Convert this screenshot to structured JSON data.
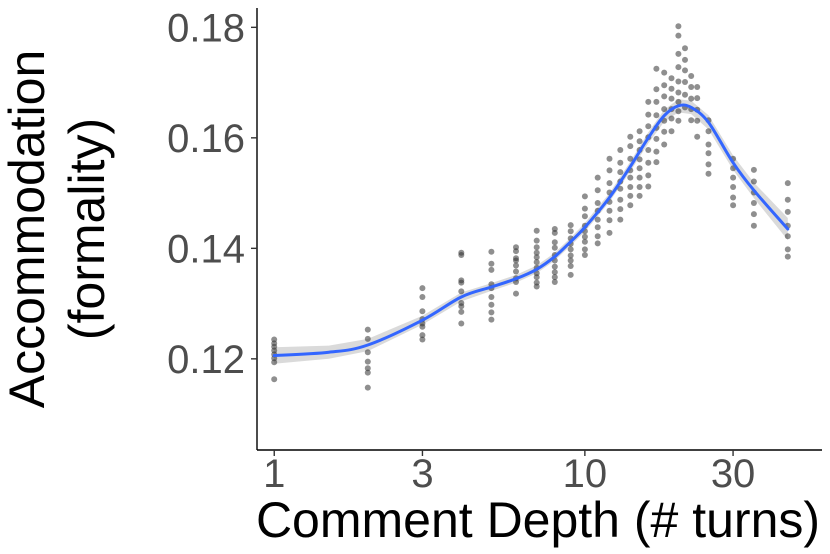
{
  "chart_data": {
    "type": "scatter",
    "title": "",
    "xlabel": "Comment Depth (# turns)",
    "ylabel": [
      "Accommodation",
      "(formality)"
    ],
    "x_scale": "log10",
    "xlim": [
      0.88,
      58
    ],
    "ylim": [
      0.1035,
      0.1835
    ],
    "x_ticks": [
      1,
      3,
      10,
      30
    ],
    "x_tick_labels": [
      "1",
      "3",
      "10",
      "30"
    ],
    "y_ticks": [
      0.12,
      0.14,
      0.16,
      0.18
    ],
    "y_tick_labels": [
      "0.12",
      "0.14",
      "0.16",
      "0.18"
    ],
    "grid": false,
    "colors": {
      "points": "#333333",
      "smooth_line": "#3366FF",
      "confidence_band": "#d3d3d3"
    },
    "series": [
      {
        "kind": "points",
        "points": [
          [
            1,
            0.1235
          ],
          [
            1,
            0.1228
          ],
          [
            1,
            0.1222
          ],
          [
            1,
            0.1215
          ],
          [
            1,
            0.1208
          ],
          [
            1,
            0.1201
          ],
          [
            1,
            0.1194
          ],
          [
            1,
            0.1163
          ],
          [
            2,
            0.1253
          ],
          [
            2,
            0.1236
          ],
          [
            2,
            0.1212
          ],
          [
            2,
            0.1195
          ],
          [
            2,
            0.1183
          ],
          [
            2,
            0.1175
          ],
          [
            2,
            0.1148
          ],
          [
            3,
            0.1328
          ],
          [
            3,
            0.1312
          ],
          [
            3,
            0.1286
          ],
          [
            3,
            0.1272
          ],
          [
            3,
            0.1264
          ],
          [
            3,
            0.1258
          ],
          [
            3,
            0.1243
          ],
          [
            3,
            0.1235
          ],
          [
            4,
            0.1392
          ],
          [
            4,
            0.1388
          ],
          [
            4,
            0.1342
          ],
          [
            4,
            0.1338
          ],
          [
            4,
            0.1322
          ],
          [
            4,
            0.1301
          ],
          [
            4,
            0.1295
          ],
          [
            4,
            0.1285
          ],
          [
            4,
            0.1264
          ],
          [
            5,
            0.1394
          ],
          [
            5,
            0.1372
          ],
          [
            5,
            0.1361
          ],
          [
            5,
            0.1335
          ],
          [
            5,
            0.1328
          ],
          [
            5,
            0.1312
          ],
          [
            5,
            0.1298
          ],
          [
            5,
            0.1284
          ],
          [
            5,
            0.1271
          ],
          [
            6,
            0.1402
          ],
          [
            6,
            0.1395
          ],
          [
            6,
            0.1382
          ],
          [
            6,
            0.1378
          ],
          [
            6,
            0.1369
          ],
          [
            6,
            0.1358
          ],
          [
            6,
            0.1346
          ],
          [
            6,
            0.1339
          ],
          [
            6,
            0.1318
          ],
          [
            7,
            0.1432
          ],
          [
            7,
            0.1414
          ],
          [
            7,
            0.1402
          ],
          [
            7,
            0.1392
          ],
          [
            7,
            0.1384
          ],
          [
            7,
            0.1375
          ],
          [
            7,
            0.1365
          ],
          [
            7,
            0.1355
          ],
          [
            7,
            0.1348
          ],
          [
            7,
            0.1338
          ],
          [
            7,
            0.1331
          ],
          [
            8,
            0.1435
          ],
          [
            8,
            0.1428
          ],
          [
            8,
            0.1411
          ],
          [
            8,
            0.1401
          ],
          [
            8,
            0.1388
          ],
          [
            8,
            0.1378
          ],
          [
            8,
            0.1367
          ],
          [
            8,
            0.1357
          ],
          [
            8,
            0.1348
          ],
          [
            8,
            0.1339
          ],
          [
            9,
            0.1442
          ],
          [
            9,
            0.1431
          ],
          [
            9,
            0.1418
          ],
          [
            9,
            0.1408
          ],
          [
            9,
            0.1398
          ],
          [
            9,
            0.1387
          ],
          [
            9,
            0.1378
          ],
          [
            9,
            0.1368
          ],
          [
            9,
            0.1352
          ],
          [
            10,
            0.1494
          ],
          [
            10,
            0.1472
          ],
          [
            10,
            0.1458
          ],
          [
            10,
            0.1441
          ],
          [
            10,
            0.1431
          ],
          [
            10,
            0.1421
          ],
          [
            10,
            0.1412
          ],
          [
            10,
            0.1398
          ],
          [
            10,
            0.1388
          ],
          [
            11,
            0.1528
          ],
          [
            11,
            0.1505
          ],
          [
            11,
            0.1482
          ],
          [
            11,
            0.1468
          ],
          [
            11,
            0.1452
          ],
          [
            11,
            0.1438
          ],
          [
            11,
            0.1422
          ],
          [
            11,
            0.1409
          ],
          [
            12,
            0.1562
          ],
          [
            12,
            0.1541
          ],
          [
            12,
            0.1518
          ],
          [
            12,
            0.1501
          ],
          [
            12,
            0.1484
          ],
          [
            12,
            0.1468
          ],
          [
            12,
            0.1451
          ],
          [
            12,
            0.1428
          ],
          [
            13,
            0.1578
          ],
          [
            13,
            0.1555
          ],
          [
            13,
            0.1538
          ],
          [
            13,
            0.1521
          ],
          [
            13,
            0.1508
          ],
          [
            13,
            0.1488
          ],
          [
            13,
            0.1471
          ],
          [
            13,
            0.1452
          ],
          [
            14,
            0.1602
          ],
          [
            14,
            0.1585
          ],
          [
            14,
            0.1562
          ],
          [
            14,
            0.1541
          ],
          [
            14,
            0.1528
          ],
          [
            14,
            0.1511
          ],
          [
            14,
            0.1495
          ],
          [
            14,
            0.1478
          ],
          [
            15,
            0.1612
          ],
          [
            15,
            0.1594
          ],
          [
            15,
            0.1578
          ],
          [
            15,
            0.1561
          ],
          [
            15,
            0.1545
          ],
          [
            15,
            0.1528
          ],
          [
            15,
            0.1511
          ],
          [
            15,
            0.1495
          ],
          [
            16,
            0.1665
          ],
          [
            16,
            0.1642
          ],
          [
            16,
            0.1621
          ],
          [
            16,
            0.1601
          ],
          [
            16,
            0.1578
          ],
          [
            16,
            0.1555
          ],
          [
            16,
            0.1532
          ],
          [
            16,
            0.1512
          ],
          [
            17,
            0.1725
          ],
          [
            17,
            0.1688
          ],
          [
            17,
            0.1665
          ],
          [
            17,
            0.1641
          ],
          [
            17,
            0.1618
          ],
          [
            17,
            0.1598
          ],
          [
            17,
            0.1575
          ],
          [
            17,
            0.1556
          ],
          [
            18,
            0.1718
          ],
          [
            18,
            0.1695
          ],
          [
            18,
            0.1675
          ],
          [
            18,
            0.1652
          ],
          [
            18,
            0.1631
          ],
          [
            18,
            0.1611
          ],
          [
            18,
            0.1588
          ],
          [
            19,
            0.1708
          ],
          [
            19,
            0.1689
          ],
          [
            19,
            0.1671
          ],
          [
            19,
            0.1652
          ],
          [
            19,
            0.1635
          ],
          [
            19,
            0.1612
          ],
          [
            20,
            0.1802
          ],
          [
            20,
            0.1785
          ],
          [
            20,
            0.1752
          ],
          [
            20,
            0.1728
          ],
          [
            20,
            0.1702
          ],
          [
            20,
            0.1682
          ],
          [
            20,
            0.1665
          ],
          [
            20,
            0.1648
          ],
          [
            20,
            0.1631
          ],
          [
            21,
            0.1762
          ],
          [
            21,
            0.1741
          ],
          [
            21,
            0.1722
          ],
          [
            21,
            0.1701
          ],
          [
            21,
            0.1678
          ],
          [
            21,
            0.1655
          ],
          [
            22,
            0.1712
          ],
          [
            22,
            0.1692
          ],
          [
            22,
            0.1671
          ],
          [
            22,
            0.1652
          ],
          [
            22,
            0.1632
          ],
          [
            23,
            0.1692
          ],
          [
            23,
            0.1672
          ],
          [
            23,
            0.1651
          ],
          [
            23,
            0.1631
          ],
          [
            23,
            0.1602
          ],
          [
            25,
            0.1632
          ],
          [
            25,
            0.1612
          ],
          [
            25,
            0.1588
          ],
          [
            25,
            0.1572
          ],
          [
            25,
            0.1552
          ],
          [
            25,
            0.1535
          ],
          [
            30,
            0.1562
          ],
          [
            30,
            0.1545
          ],
          [
            30,
            0.1528
          ],
          [
            30,
            0.1511
          ],
          [
            30,
            0.1492
          ],
          [
            30,
            0.1478
          ],
          [
            35,
            0.1542
          ],
          [
            35,
            0.1521
          ],
          [
            35,
            0.1501
          ],
          [
            35,
            0.1482
          ],
          [
            35,
            0.1462
          ],
          [
            35,
            0.1441
          ],
          [
            45,
            0.1518
          ],
          [
            45,
            0.1488
          ],
          [
            45,
            0.1466
          ],
          [
            45,
            0.1441
          ],
          [
            45,
            0.1422
          ],
          [
            45,
            0.1398
          ],
          [
            45,
            0.1385
          ]
        ]
      },
      {
        "kind": "smooth",
        "x": [
          1,
          1.5,
          2,
          3,
          4,
          5,
          6,
          7,
          8,
          9,
          10,
          12,
          14,
          16,
          18,
          20,
          22,
          25,
          30,
          35,
          45
        ],
        "y": [
          0.1206,
          0.1212,
          0.1225,
          0.127,
          0.1312,
          0.133,
          0.1345,
          0.1362,
          0.1385,
          0.1412,
          0.1438,
          0.1492,
          0.1548,
          0.16,
          0.164,
          0.1658,
          0.1655,
          0.1628,
          0.1555,
          0.1505,
          0.1435
        ],
        "band_half_width": [
          0.0015,
          0.0012,
          0.0011,
          0.0008,
          0.0008,
          0.0007,
          0.0007,
          0.0007,
          0.0007,
          0.0007,
          0.0008,
          0.0008,
          0.0009,
          0.001,
          0.0011,
          0.0012,
          0.0012,
          0.0013,
          0.0013,
          0.0014,
          0.002
        ]
      }
    ]
  }
}
